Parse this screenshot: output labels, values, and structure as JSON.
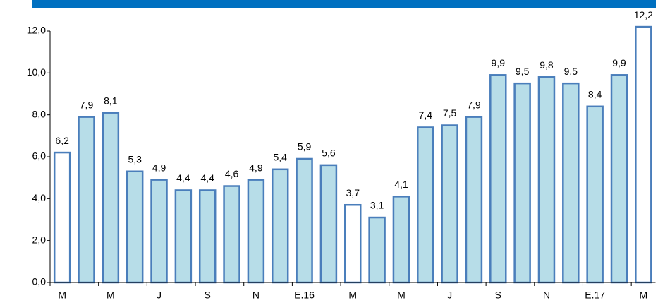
{
  "chart_data": {
    "type": "bar",
    "categories": [
      "M",
      null,
      "M",
      null,
      "J",
      null,
      "S",
      null,
      "N",
      null,
      "E.16",
      null,
      "M",
      null,
      "M",
      null,
      "J",
      null,
      "S",
      null,
      "N",
      null,
      "E.17",
      null,
      "M"
    ],
    "values": [
      6.2,
      7.9,
      8.1,
      5.3,
      4.9,
      4.4,
      4.4,
      4.6,
      4.9,
      5.4,
      5.9,
      5.6,
      3.7,
      3.1,
      4.1,
      7.4,
      7.5,
      7.9,
      9.9,
      9.5,
      9.8,
      9.5,
      8.4,
      9.9,
      12.2
    ],
    "value_labels": [
      "6,2",
      "7,9",
      "8,1",
      "5,3",
      "4,9",
      "4,4",
      "4,4",
      "4,6",
      "4,9",
      "5,4",
      "5,9",
      "5,6",
      "3,7",
      "3,1",
      "4,1",
      "7,4",
      "7,5",
      "7,9",
      "9,9",
      "9,5",
      "9,8",
      "9,5",
      "8,4",
      "9,9",
      "12,2"
    ],
    "colors": [
      "#ffffff",
      "#b7dde8",
      "#b7dde8",
      "#b7dde8",
      "#b7dde8",
      "#b7dde8",
      "#b7dde8",
      "#b7dde8",
      "#b7dde8",
      "#b7dde8",
      "#b7dde8",
      "#b7dde8",
      "#ffffff",
      "#b7dde8",
      "#b7dde8",
      "#b7dde8",
      "#b7dde8",
      "#b7dde8",
      "#b7dde8",
      "#b7dde8",
      "#b7dde8",
      "#b7dde8",
      "#b7dde8",
      "#b7dde8",
      "#ffffff"
    ],
    "edge_color": "#4a7ebb",
    "ylim": [
      0,
      12
    ],
    "yticks": [
      {
        "value": 0,
        "label": "0,0"
      },
      {
        "value": 2,
        "label": "2,0"
      },
      {
        "value": 4,
        "label": "4,0"
      },
      {
        "value": 6,
        "label": "6,0"
      },
      {
        "value": 8,
        "label": "8,0"
      },
      {
        "value": 10,
        "label": "10,0"
      },
      {
        "value": 12,
        "label": "12,0"
      }
    ],
    "grid": false
  }
}
